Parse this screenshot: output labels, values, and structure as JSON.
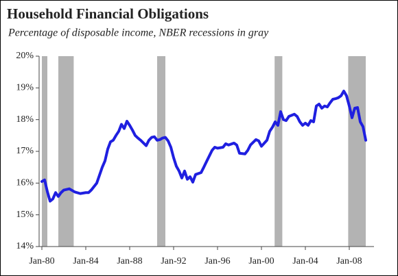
{
  "chart_data": {
    "type": "line",
    "title": "Household Financial Obligations",
    "subtitle": "Percentage of disposable income,  NBER recessions in gray",
    "color": "#1f1fe0",
    "recession_color": "#b3b3b3",
    "recessions": [
      [
        1980.0,
        1980.5
      ],
      [
        1981.5,
        1982.9
      ],
      [
        1990.5,
        1991.25
      ],
      [
        2001.2,
        2001.9
      ],
      [
        2007.9,
        2009.5
      ]
    ],
    "x": [
      1980,
      1980.25,
      1980.5,
      1980.75,
      1981,
      1981.25,
      1981.5,
      1981.75,
      1982,
      1982.5,
      1983,
      1983.5,
      1984,
      1984.25,
      1984.5,
      1985,
      1985.5,
      1985.75,
      1986,
      1986.25,
      1986.5,
      1986.75,
      1987,
      1987.25,
      1987.5,
      1987.75,
      1988,
      1988.25,
      1988.5,
      1988.75,
      1989,
      1989.5,
      1989.75,
      1990,
      1990.25,
      1990.5,
      1990.75,
      1991,
      1991.25,
      1991.5,
      1991.75,
      1992,
      1992.25,
      1992.5,
      1992.75,
      1993,
      1993.25,
      1993.5,
      1993.75,
      1994,
      1994.5,
      1994.75,
      1995,
      1995.5,
      1995.75,
      1996,
      1996.5,
      1996.75,
      1997,
      1997.5,
      1997.75,
      1998,
      1998.5,
      1998.75,
      1999,
      1999.5,
      1999.75,
      2000,
      2000.5,
      2000.75,
      2001,
      2001.25,
      2001.5,
      2001.75,
      2002,
      2002.25,
      2002.5,
      2003,
      2003.25,
      2003.5,
      2003.75,
      2004,
      2004.25,
      2004.5,
      2004.75,
      2005,
      2005.25,
      2005.5,
      2005.75,
      2006,
      2006.25,
      2006.5,
      2006.75,
      2007,
      2007.25,
      2007.5,
      2007.75,
      2008,
      2008.25,
      2008.5,
      2008.75,
      2009,
      2009.25,
      2009.5
    ],
    "values": [
      16.05,
      16.1,
      15.73,
      15.43,
      15.5,
      15.7,
      15.58,
      15.7,
      15.78,
      15.82,
      15.72,
      15.67,
      15.7,
      15.7,
      15.78,
      16.0,
      16.5,
      16.7,
      17.07,
      17.3,
      17.35,
      17.5,
      17.63,
      17.85,
      17.72,
      17.95,
      17.82,
      17.67,
      17.5,
      17.42,
      17.35,
      17.18,
      17.35,
      17.44,
      17.46,
      17.35,
      17.37,
      17.42,
      17.44,
      17.33,
      17.13,
      16.8,
      16.53,
      16.38,
      16.16,
      16.38,
      16.12,
      16.2,
      16.03,
      16.27,
      16.33,
      16.5,
      16.68,
      17.03,
      17.13,
      17.1,
      17.13,
      17.24,
      17.2,
      17.26,
      17.2,
      16.94,
      16.92,
      17.03,
      17.2,
      17.37,
      17.33,
      17.16,
      17.35,
      17.63,
      17.76,
      17.93,
      17.82,
      18.25,
      18.0,
      17.97,
      18.1,
      18.17,
      18.1,
      17.93,
      17.82,
      17.89,
      17.82,
      17.97,
      17.93,
      18.43,
      18.49,
      18.36,
      18.43,
      18.4,
      18.53,
      18.64,
      18.66,
      18.69,
      18.75,
      18.9,
      18.75,
      18.43,
      18.06,
      18.36,
      18.38,
      17.93,
      17.78,
      17.35
    ],
    "xlim": [
      1979.75,
      2010.25
    ],
    "xticks": [
      {
        "value": 1980,
        "label": "Jan-80"
      },
      {
        "value": 1984,
        "label": "Jan-84"
      },
      {
        "value": 1988,
        "label": "Jan-88"
      },
      {
        "value": 1992,
        "label": "Jan-92"
      },
      {
        "value": 1996,
        "label": "Jan-96"
      },
      {
        "value": 2000,
        "label": "Jan-00"
      },
      {
        "value": 2004,
        "label": "Jan-04"
      },
      {
        "value": 2008,
        "label": "Jan-08"
      }
    ],
    "ylim": [
      14,
      20
    ],
    "yticks": [
      {
        "value": 14,
        "label": "14%"
      },
      {
        "value": 15,
        "label": "15%"
      },
      {
        "value": 16,
        "label": "16%"
      },
      {
        "value": 17,
        "label": "17%"
      },
      {
        "value": 18,
        "label": "18%"
      },
      {
        "value": 19,
        "label": "19%"
      },
      {
        "value": 20,
        "label": "20%"
      }
    ]
  }
}
